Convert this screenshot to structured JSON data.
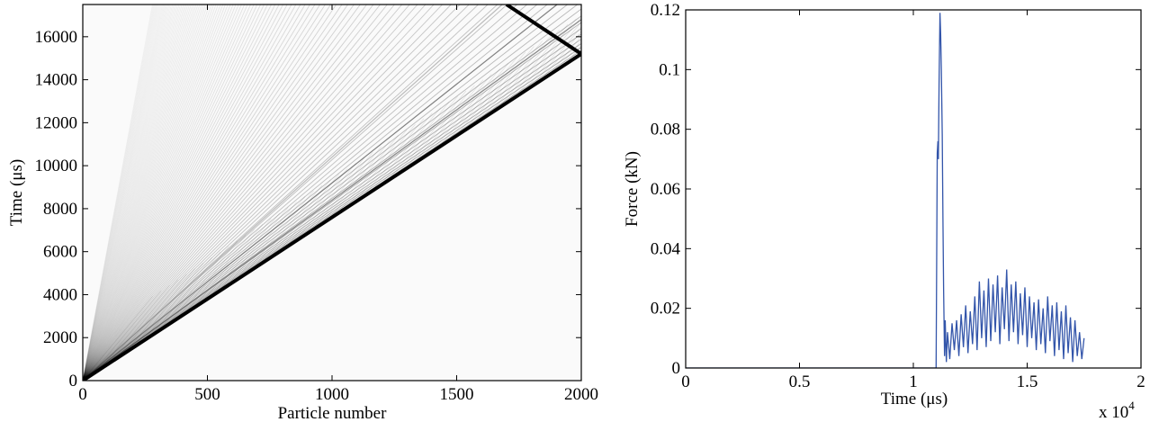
{
  "chart_data": [
    {
      "type": "heatmap",
      "xlabel": "Particle number",
      "ylabel": "Time (μs)",
      "xlim": [
        0,
        2000
      ],
      "ylim": [
        0,
        17500
      ],
      "xticks": [
        0,
        500,
        1000,
        1500,
        2000
      ],
      "yticks": [
        0,
        2000,
        4000,
        6000,
        8000,
        10000,
        12000,
        14000,
        16000
      ],
      "xtick_labels": [
        "0",
        "500",
        "1000",
        "1500",
        "2000"
      ],
      "ytick_labels": [
        "0",
        "2000",
        "4000",
        "6000",
        "8000",
        "10000",
        "12000",
        "14000",
        "16000"
      ],
      "colormap": "white-to-black",
      "main_front": {
        "x": [
          0,
          2000
        ],
        "y": [
          0,
          15200
        ]
      },
      "reflected_front": {
        "x": [
          2000,
          1700
        ],
        "y": [
          15200,
          17500
        ]
      }
    },
    {
      "type": "line",
      "xlabel": "Time (μs)",
      "ylabel": "Force (kN)",
      "xlim": [
        0,
        2
      ],
      "ylim": [
        0,
        0.12
      ],
      "x_multiplier_label": "x 10",
      "x_multiplier_exponent": "4",
      "xticks": [
        0,
        0.5,
        1,
        1.5,
        2
      ],
      "yticks": [
        0,
        0.02,
        0.04,
        0.06,
        0.08,
        0.1,
        0.12
      ],
      "xtick_labels": [
        "0",
        "0.5",
        "1",
        "1.5",
        "2"
      ],
      "ytick_labels": [
        "0",
        "0.02",
        "0.04",
        "0.06",
        "0.08",
        "0.1",
        "0.12"
      ],
      "line_color": "#3355aa",
      "series": [
        {
          "x": [
            0,
            1.1,
            1.105,
            1.108,
            1.11,
            1.113,
            1.117,
            1.12,
            1.123,
            1.127,
            1.13,
            1.133,
            1.137,
            1.14,
            1.145,
            1.15,
            1.16,
            1.17,
            1.18,
            1.19,
            1.2,
            1.21,
            1.22,
            1.23,
            1.24,
            1.25,
            1.26,
            1.27,
            1.28,
            1.29,
            1.3,
            1.31,
            1.32,
            1.33,
            1.34,
            1.35,
            1.36,
            1.37,
            1.38,
            1.39,
            1.4,
            1.41,
            1.42,
            1.43,
            1.44,
            1.45,
            1.46,
            1.47,
            1.48,
            1.49,
            1.5,
            1.51,
            1.52,
            1.53,
            1.54,
            1.55,
            1.56,
            1.57,
            1.58,
            1.59,
            1.6,
            1.61,
            1.62,
            1.63,
            1.64,
            1.65,
            1.66,
            1.67,
            1.68,
            1.69,
            1.7,
            1.71,
            1.72,
            1.73,
            1.74,
            1.75
          ],
          "y": [
            0,
            0,
            0.072,
            0.076,
            0.07,
            0.095,
            0.119,
            0.112,
            0.1,
            0.078,
            0.05,
            0.026,
            0.004,
            0.016,
            0.002,
            0.012,
            0.003,
            0.015,
            0.006,
            0.016,
            0.004,
            0.018,
            0.007,
            0.021,
            0.005,
            0.019,
            0.008,
            0.024,
            0.006,
            0.029,
            0.01,
            0.026,
            0.007,
            0.03,
            0.009,
            0.028,
            0.012,
            0.031,
            0.008,
            0.027,
            0.013,
            0.033,
            0.009,
            0.028,
            0.012,
            0.029,
            0.008,
            0.025,
            0.011,
            0.027,
            0.007,
            0.024,
            0.01,
            0.022,
            0.006,
            0.023,
            0.008,
            0.02,
            0.005,
            0.024,
            0.009,
            0.021,
            0.004,
            0.022,
            0.006,
            0.019,
            0.003,
            0.021,
            0.005,
            0.017,
            0.002,
            0.016,
            0.004,
            0.012,
            0.003,
            0.01
          ]
        }
      ]
    }
  ]
}
